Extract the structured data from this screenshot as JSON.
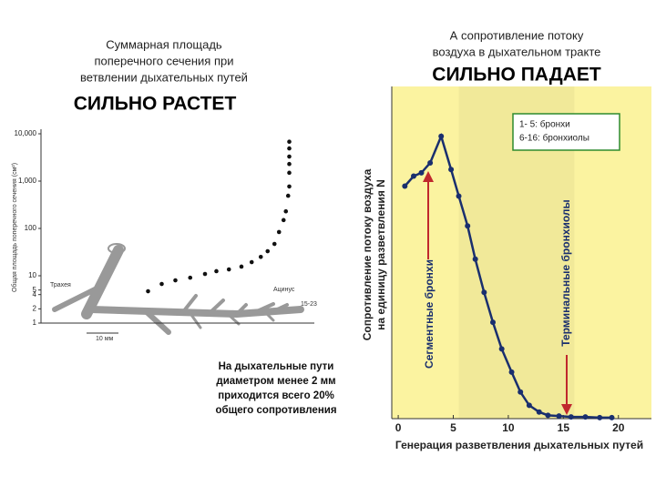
{
  "left_heading": {
    "lines": [
      "Суммарная площадь",
      "поперечного сечения при",
      "ветвлении дыхательных путей"
    ],
    "emphasis": "СИЛЬНО РАСТЕТ"
  },
  "right_heading": {
    "lines": [
      "А сопротивление потоку",
      "воздуха в дыхательном тракте"
    ],
    "emphasis": "СИЛЬНО ПАДАЕТ"
  },
  "note": [
    "На дыхательные пути",
    "диаметром менее 2 мм",
    "приходится всего 20%",
    "общего сопротивления"
  ],
  "chart_data": [
    {
      "type": "scatter",
      "y_label": "Общая площадь поперечного сечения (см²)",
      "log_y": true,
      "color": "#111",
      "x": [
        9.4,
        10.6,
        11.8,
        13.1,
        14.4,
        15.4,
        16.5,
        17.6,
        18.5,
        19.3,
        19.9,
        20.5,
        20.9,
        21.3,
        21.5,
        21.7,
        21.8,
        21.8,
        21.8,
        21.8,
        21.8,
        21.8
      ],
      "values": [
        4.7,
        6.7,
        8,
        9.1,
        10.9,
        12.5,
        13.6,
        15.6,
        19.4,
        25,
        33,
        47,
        84,
        150,
        230,
        490,
        770,
        1500,
        2300,
        3300,
        4900,
        6800
      ],
      "xlim": [
        0,
        24
      ],
      "ylim": [
        1,
        10000
      ],
      "yticks": [
        1,
        2,
        4,
        5,
        10,
        100,
        {
          "value": 1000,
          "label": "1,000"
        },
        {
          "value": 10000,
          "label": "10,000"
        }
      ],
      "annotations": [
        "Трахея",
        "Ацинус",
        "10 мм",
        "15-23"
      ]
    },
    {
      "type": "line",
      "color": "#1a2f6e",
      "background": "#fbf3a0",
      "y_label": [
        "Сопротивление потоку воздуха",
        "на единицу разветвления N"
      ],
      "x_label": "Генерация разветвления дыхательных путей",
      "x": [
        0.6,
        1.4,
        2.1,
        2.9,
        3.9,
        4.8,
        5.5,
        6.3,
        7,
        7.8,
        8.6,
        9.4,
        10.3,
        11.1,
        11.9,
        12.8,
        13.6,
        14.6,
        15.7,
        17,
        18.3,
        19.4
      ],
      "values": [
        70,
        73,
        74,
        77,
        85,
        75,
        67,
        58,
        48,
        38,
        29,
        21,
        14,
        8,
        4,
        2,
        1,
        0.8,
        0.5,
        0.5,
        0.3,
        0.3
      ],
      "xlim": [
        -1,
        23
      ],
      "ylim": [
        0,
        100
      ],
      "xticks": [
        0,
        5,
        10,
        15,
        20
      ],
      "legend": [
        "1- 5: бронхи",
        "6-16: бронхиолы"
      ],
      "annotations": [
        "Сегментные бронхи",
        "Терминальные бронхиолы"
      ],
      "arrow_color": "#c0282d"
    }
  ]
}
